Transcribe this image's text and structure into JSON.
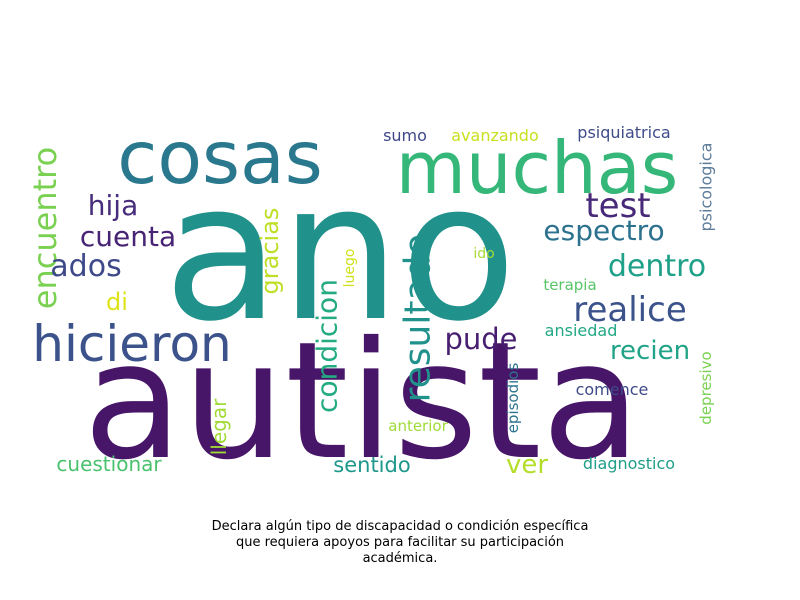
{
  "chart_data": {
    "type": "wordcloud",
    "words": [
      {
        "text": "ano",
        "weight": 100,
        "color": "#21918c"
      },
      {
        "text": "autista",
        "weight": 90,
        "color": "#481668"
      },
      {
        "text": "muchas",
        "weight": 40,
        "color": "#35b779"
      },
      {
        "text": "cosas",
        "weight": 38,
        "color": "#2a788e"
      },
      {
        "text": "hicieron",
        "weight": 26,
        "color": "#3b528b"
      },
      {
        "text": "resultado",
        "weight": 18,
        "color": "#21918c"
      },
      {
        "text": "encuentro",
        "weight": 17,
        "color": "#7ad151"
      },
      {
        "text": "realice",
        "weight": 17,
        "color": "#3b528b"
      },
      {
        "text": "test",
        "weight": 16,
        "color": "#482878"
      },
      {
        "text": "condicion",
        "weight": 15,
        "color": "#25ab82"
      },
      {
        "text": "dentro",
        "weight": 15,
        "color": "#1fa088"
      },
      {
        "text": "hija",
        "weight": 15,
        "color": "#472d7b"
      },
      {
        "text": "ados",
        "weight": 15,
        "color": "#3e4989"
      },
      {
        "text": "cuenta",
        "weight": 14,
        "color": "#482475"
      },
      {
        "text": "pude",
        "weight": 14,
        "color": "#481f70"
      },
      {
        "text": "espectro",
        "weight": 14,
        "color": "#2c728e"
      },
      {
        "text": "recien",
        "weight": 14,
        "color": "#20a386"
      },
      {
        "text": "gracias",
        "weight": 12,
        "color": "#bddf26"
      },
      {
        "text": "ver",
        "weight": 12,
        "color": "#b5de2b"
      },
      {
        "text": "di",
        "weight": 11,
        "color": "#dde318"
      },
      {
        "text": "sentido",
        "weight": 11,
        "color": "#1f978b"
      },
      {
        "text": "cuestionar",
        "weight": 11,
        "color": "#4ac16d"
      },
      {
        "text": "llegar",
        "weight": 10,
        "color": "#a2da37"
      },
      {
        "text": "sumo",
        "weight": 9,
        "color": "#3f4788"
      },
      {
        "text": "avanzando",
        "weight": 9,
        "color": "#c8e020"
      },
      {
        "text": "psiquiatrica",
        "weight": 9,
        "color": "#3e4c8a"
      },
      {
        "text": "psicologica",
        "weight": 9,
        "color": "#5c7c9a"
      },
      {
        "text": "ansiedad",
        "weight": 9,
        "color": "#22a884"
      },
      {
        "text": "terapia",
        "weight": 9,
        "color": "#56c667"
      },
      {
        "text": "comence",
        "weight": 9,
        "color": "#3e4a89"
      },
      {
        "text": "episodios",
        "weight": 8,
        "color": "#2c738e"
      },
      {
        "text": "diagnostico",
        "weight": 9,
        "color": "#1f9e89"
      },
      {
        "text": "anterior",
        "weight": 8,
        "color": "#9fda3a"
      },
      {
        "text": "depresivo",
        "weight": 8,
        "color": "#7ad151"
      },
      {
        "text": "luego",
        "weight": 8,
        "color": "#d0e11c"
      },
      {
        "text": "ido",
        "weight": 8,
        "color": "#a8db34"
      }
    ],
    "caption_lines": [
      "Declara algún tipo de discapacidad o condición específica",
      "que requiera apoyos para facilitar su participación",
      "académica."
    ]
  }
}
